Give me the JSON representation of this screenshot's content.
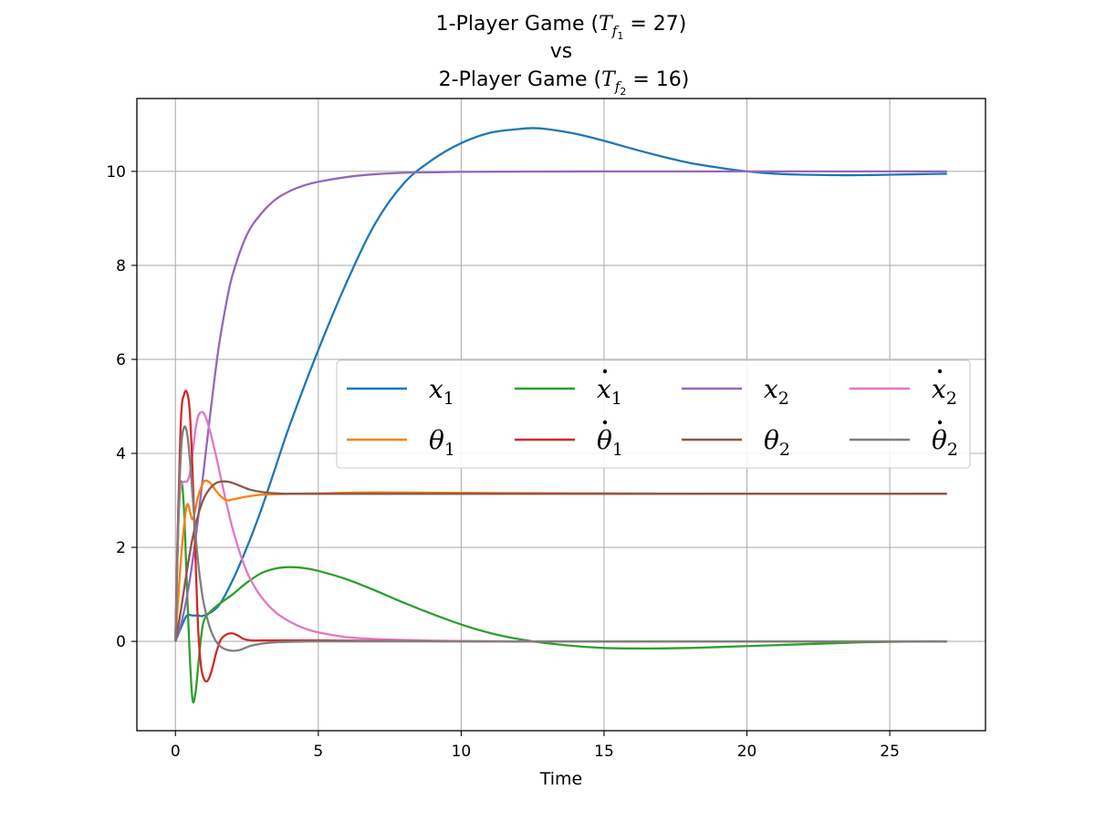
{
  "chart_data": {
    "type": "line",
    "title": {
      "line1_prefix": "1-Player Game (",
      "line1_var": "T",
      "line1_sub": "f",
      "line1_subsub": "1",
      "line1_value": " = 27)",
      "line2": "vs",
      "line3_prefix": "2-Player Game (",
      "line3_var": "T",
      "line3_sub": "f",
      "line3_subsub": "2",
      "line3_value": " = 16)"
    },
    "xlabel": "Time",
    "ylabel": "",
    "xlim": [
      -1.35,
      28.35
    ],
    "ylim": [
      -1.9,
      11.55
    ],
    "xticks": [
      0,
      5,
      10,
      15,
      20,
      25
    ],
    "yticks": [
      0,
      2,
      4,
      6,
      8,
      10
    ],
    "grid": true,
    "legend_position": "center-right",
    "series": [
      {
        "name": "x",
        "sub": "1",
        "dot": false,
        "color": "#1f77b4",
        "x": [
          0,
          0.2,
          0.4,
          0.6,
          0.8,
          1.0,
          1.5,
          2,
          2.5,
          3,
          3.5,
          4,
          5,
          6,
          7,
          8,
          9,
          10,
          11,
          12,
          12.5,
          13,
          14,
          15,
          16,
          17,
          18,
          19,
          20,
          21,
          22,
          23,
          24,
          25,
          26,
          27
        ],
        "y": [
          0,
          0.3,
          0.55,
          0.55,
          0.55,
          0.55,
          0.75,
          1.3,
          2.0,
          2.8,
          3.7,
          4.6,
          6.2,
          7.65,
          8.9,
          9.75,
          10.25,
          10.6,
          10.82,
          10.9,
          10.92,
          10.9,
          10.8,
          10.65,
          10.48,
          10.32,
          10.18,
          10.08,
          10.0,
          9.95,
          9.93,
          9.92,
          9.92,
          9.93,
          9.94,
          9.95
        ]
      },
      {
        "name": "x",
        "sub": "1",
        "dot": true,
        "color": "#2ca02c",
        "x": [
          0,
          0.1,
          0.2,
          0.3,
          0.4,
          0.5,
          0.6,
          0.7,
          0.8,
          0.9,
          1.0,
          1.2,
          1.5,
          2,
          2.5,
          3,
          3.5,
          4,
          4.5,
          5,
          6,
          7,
          8,
          9,
          10,
          11,
          12,
          13,
          14,
          15,
          16,
          17,
          18,
          19,
          20,
          21,
          22,
          23,
          24,
          25,
          26,
          27
        ],
        "y": [
          0,
          2.5,
          3.4,
          2.8,
          1.2,
          -0.3,
          -1.25,
          -1.1,
          -0.5,
          0.1,
          0.45,
          0.62,
          0.78,
          1.0,
          1.25,
          1.45,
          1.55,
          1.58,
          1.56,
          1.5,
          1.32,
          1.08,
          0.82,
          0.58,
          0.36,
          0.18,
          0.05,
          -0.04,
          -0.1,
          -0.14,
          -0.15,
          -0.15,
          -0.14,
          -0.12,
          -0.1,
          -0.08,
          -0.06,
          -0.04,
          -0.02,
          -0.01,
          0,
          0
        ]
      },
      {
        "name": "x",
        "sub": "2",
        "dot": false,
        "color": "#9467bd",
        "x": [
          0,
          0.25,
          0.5,
          0.75,
          1.0,
          1.25,
          1.5,
          1.75,
          2,
          2.5,
          3,
          3.5,
          4,
          4.5,
          5,
          6,
          7,
          8,
          9,
          10,
          12,
          15,
          20,
          25,
          27
        ],
        "y": [
          0,
          0.5,
          1.3,
          2.4,
          3.7,
          5.0,
          6.2,
          7.1,
          7.8,
          8.65,
          9.1,
          9.4,
          9.58,
          9.7,
          9.78,
          9.88,
          9.94,
          9.97,
          9.98,
          9.99,
          9.995,
          10.0,
          10.0,
          10.0,
          10.0
        ]
      },
      {
        "name": "x",
        "sub": "2",
        "dot": true,
        "color": "#e377c2",
        "x": [
          0,
          0.1,
          0.2,
          0.3,
          0.4,
          0.5,
          0.6,
          0.7,
          0.8,
          0.9,
          1.0,
          1.1,
          1.2,
          1.4,
          1.6,
          1.8,
          2.0,
          2.3,
          2.6,
          3.0,
          3.5,
          4,
          4.5,
          5,
          6,
          7,
          8,
          9,
          10,
          12,
          15,
          20,
          25,
          27
        ],
        "y": [
          0,
          2.8,
          3.3,
          3.4,
          3.4,
          3.55,
          4.0,
          4.5,
          4.8,
          4.88,
          4.85,
          4.7,
          4.5,
          4.0,
          3.45,
          2.9,
          2.4,
          1.8,
          1.35,
          0.95,
          0.62,
          0.42,
          0.28,
          0.19,
          0.09,
          0.05,
          0.03,
          0.015,
          0.01,
          0,
          0,
          0,
          0,
          0
        ]
      },
      {
        "name": "θ",
        "sub": "1",
        "dot": false,
        "color": "#ff7f0e",
        "x": [
          0,
          0.2,
          0.4,
          0.6,
          0.8,
          1.0,
          1.2,
          1.4,
          1.6,
          1.8,
          2.0,
          2.5,
          3,
          4,
          5,
          7,
          10,
          15,
          20,
          27
        ],
        "y": [
          0,
          1.8,
          2.9,
          2.6,
          3.1,
          3.4,
          3.38,
          3.22,
          3.08,
          3.0,
          3.02,
          3.08,
          3.12,
          3.14,
          3.15,
          3.17,
          3.16,
          3.15,
          3.14,
          3.14
        ]
      },
      {
        "name": "θ",
        "sub": "1",
        "dot": true,
        "color": "#d62728",
        "x": [
          0,
          0.1,
          0.2,
          0.3,
          0.4,
          0.5,
          0.6,
          0.7,
          0.8,
          0.9,
          1.0,
          1.1,
          1.2,
          1.3,
          1.4,
          1.5,
          1.6,
          1.8,
          2.0,
          2.2,
          2.4,
          2.7,
          3,
          3.5,
          4,
          5,
          7,
          10,
          15,
          20,
          27
        ],
        "y": [
          0,
          2.8,
          4.8,
          5.25,
          5.3,
          4.9,
          3.6,
          1.8,
          0.2,
          -0.55,
          -0.8,
          -0.85,
          -0.75,
          -0.55,
          -0.3,
          -0.1,
          0.05,
          0.15,
          0.17,
          0.12,
          0.05,
          0.02,
          0.02,
          0.02,
          0.02,
          0.02,
          0.01,
          0,
          0,
          0,
          0
        ]
      },
      {
        "name": "θ",
        "sub": "2",
        "dot": false,
        "color": "#8c564b",
        "x": [
          0,
          0.2,
          0.4,
          0.6,
          0.8,
          1.0,
          1.2,
          1.4,
          1.6,
          1.8,
          2.0,
          2.3,
          2.6,
          3.0,
          3.5,
          4,
          5,
          7,
          10,
          15,
          20,
          27
        ],
        "y": [
          0,
          0.7,
          1.5,
          2.2,
          2.7,
          3.05,
          3.25,
          3.36,
          3.4,
          3.4,
          3.37,
          3.3,
          3.23,
          3.18,
          3.15,
          3.14,
          3.14,
          3.14,
          3.14,
          3.14,
          3.14,
          3.14
        ]
      },
      {
        "name": "θ",
        "sub": "2",
        "dot": true,
        "color": "#7f7f7f",
        "x": [
          0,
          0.1,
          0.2,
          0.3,
          0.4,
          0.5,
          0.6,
          0.7,
          0.8,
          0.9,
          1.0,
          1.2,
          1.4,
          1.6,
          1.8,
          2.0,
          2.2,
          2.4,
          2.6,
          3.0,
          3.5,
          4,
          5,
          7,
          10,
          15,
          20,
          27
        ],
        "y": [
          0,
          2.5,
          4.1,
          4.55,
          4.45,
          3.9,
          3.1,
          2.3,
          1.65,
          1.15,
          0.78,
          0.3,
          0.02,
          -0.12,
          -0.18,
          -0.2,
          -0.19,
          -0.15,
          -0.1,
          -0.05,
          -0.02,
          -0.01,
          0,
          0,
          0,
          0,
          0,
          0
        ]
      }
    ],
    "legend_order": [
      0,
      4,
      1,
      5,
      2,
      6,
      3,
      7
    ]
  }
}
